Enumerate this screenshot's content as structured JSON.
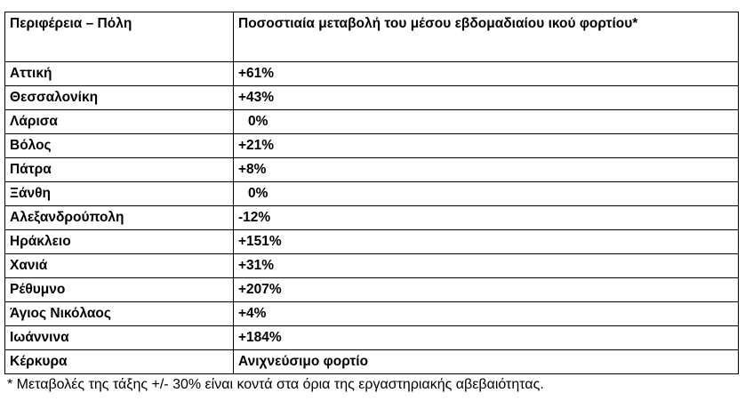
{
  "table": {
    "header": [
      "Περιφέρεια – Πόλη",
      "Ποσοστιαία μεταβολή του μέσου εβδομαδιαίου ικού φορτίου*"
    ],
    "rows": [
      [
        "Αττική",
        "+61%"
      ],
      [
        "Θεσσαλονίκη",
        "+43%"
      ],
      [
        "Λάρισα",
        "0%"
      ],
      [
        "Βόλος",
        "+21%"
      ],
      [
        "Πάτρα",
        "+8%"
      ],
      [
        "Ξάνθη",
        "0%"
      ],
      [
        "Αλεξανδρούπολη",
        "-12%"
      ],
      [
        "Ηράκλειο",
        "+151%"
      ],
      [
        "Χανιά",
        "+31%"
      ],
      [
        "Ρέθυμνο",
        "+207%"
      ],
      [
        "Άγιος Νικόλαος",
        "+4%"
      ],
      [
        "Ιωάννινα",
        "+184%"
      ],
      [
        "Κέρκυρα",
        "Ανιχνεύσιμο φορτίο"
      ]
    ]
  },
  "footnote": "* Μεταβολές της τάξης +/- 30% είναι κοντά στα όρια της εργαστηριακής αβεβαιότητας."
}
